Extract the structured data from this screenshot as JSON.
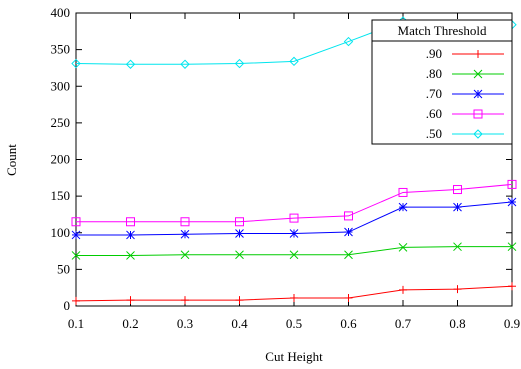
{
  "chart_data": {
    "type": "line",
    "title": "",
    "xlabel": "Cut Height",
    "ylabel": "Count",
    "x": [
      0.1,
      0.2,
      0.3,
      0.4,
      0.5,
      0.6,
      0.7,
      0.8,
      0.9
    ],
    "x_ticks": [
      "0.1",
      "0.2",
      "0.3",
      "0.4",
      "0.5",
      "0.6",
      "0.7",
      "0.8",
      "0.9"
    ],
    "xlim": [
      0.1,
      0.9
    ],
    "ylim": [
      0,
      400
    ],
    "y_ticks": [
      "0",
      "50",
      "100",
      "150",
      "200",
      "250",
      "300",
      "350",
      "400"
    ],
    "grid": false,
    "legend": {
      "title": "Match Threshold",
      "placement": "top-right"
    },
    "series": [
      {
        "name": ".90",
        "color": "#ff0000",
        "marker": "plus",
        "values": [
          7,
          8,
          8,
          8,
          11,
          11,
          22,
          23,
          27
        ]
      },
      {
        "name": ".80",
        "color": "#00cc00",
        "marker": "cross",
        "values": [
          69,
          69,
          70,
          70,
          70,
          70,
          80,
          81,
          81
        ]
      },
      {
        "name": ".70",
        "color": "#0000ff",
        "marker": "star",
        "values": [
          97,
          97,
          98,
          99,
          99,
          101,
          135,
          135,
          142
        ]
      },
      {
        "name": ".60",
        "color": "#ff00ff",
        "marker": "square",
        "values": [
          115,
          115,
          115,
          115,
          120,
          123,
          155,
          159,
          166
        ]
      },
      {
        "name": ".50",
        "color": "#00e5ee",
        "marker": "diamond",
        "values": [
          331,
          330,
          330,
          331,
          334,
          361,
          389,
          384,
          384
        ]
      }
    ]
  }
}
